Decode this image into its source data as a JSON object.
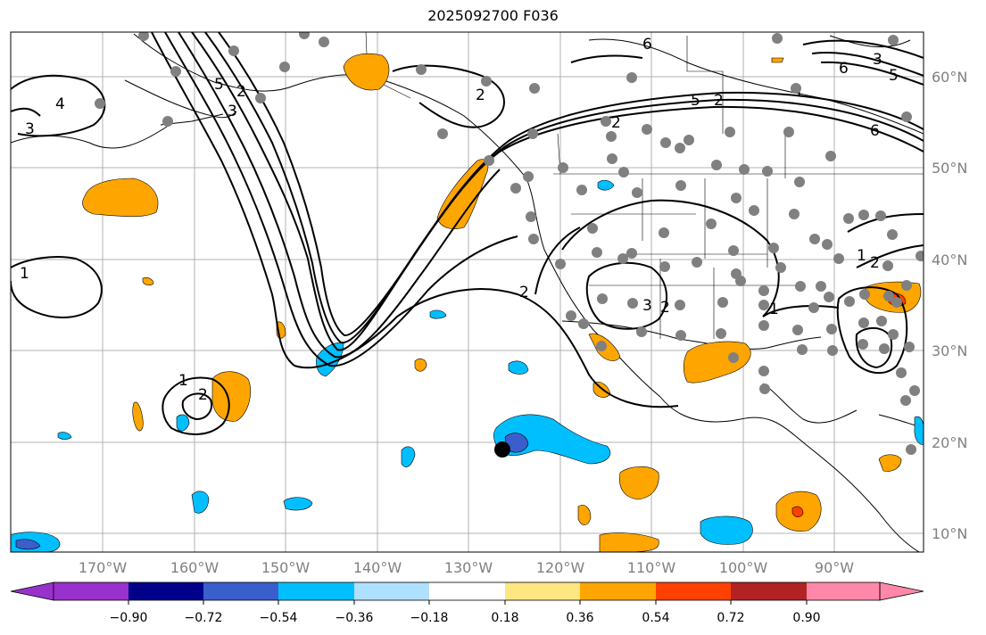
{
  "title": "2025092700 F036",
  "map": {
    "lon_labels": [
      "170°W",
      "160°W",
      "150°W",
      "140°W",
      "130°W",
      "120°W",
      "110°W",
      "100°W",
      "90°W"
    ],
    "lat_labels": [
      "60°N",
      "50°N",
      "40°N",
      "30°N",
      "20°N",
      "10°N"
    ],
    "contour_labels": [
      "1",
      "1",
      "1",
      "1",
      "1",
      "2",
      "2",
      "2",
      "2",
      "2",
      "2",
      "2",
      "2",
      "3",
      "3",
      "3",
      "3",
      "4",
      "5",
      "5",
      "5",
      "6",
      "6",
      "6"
    ],
    "colors": {
      "light_blue": "#b0e0ff",
      "blue": "#00bfff",
      "royal_blue": "#3a5fcd",
      "orange": "#ffa500",
      "red_orange": "#ff4000",
      "station_dot": "#808080"
    }
  },
  "colorbar": {
    "tick_labels": [
      "−0.90",
      "−0.72",
      "−0.54",
      "−0.36",
      "−0.18",
      "0.18",
      "0.36",
      "0.54",
      "0.72",
      "0.90"
    ],
    "colors": [
      "#9932cc",
      "#00008b",
      "#3a5fcd",
      "#00bfff",
      "#b0e0ff",
      "#ffffff",
      "#ffe680",
      "#ffa500",
      "#ff4000",
      "#b22222",
      "#ff88aa"
    ]
  }
}
